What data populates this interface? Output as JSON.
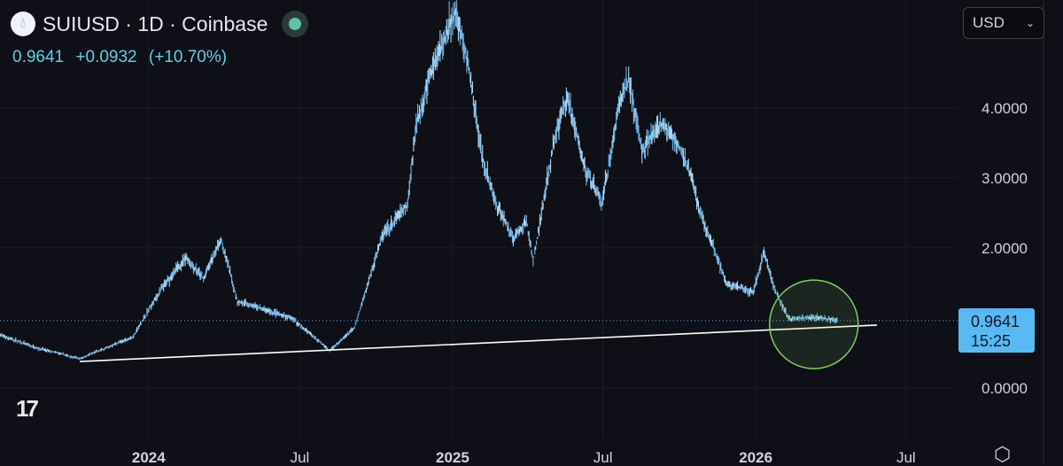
{
  "header": {
    "symbol": "SUIUSD",
    "interval": "1D",
    "exchange": "Coinbase",
    "title": "SUIUSD · 1D · Coinbase",
    "last": "0.9641",
    "change": "+0.0932",
    "change_pct": "(+10.70%)",
    "currency": "USD",
    "icon": "sui-droplet-icon",
    "status_icon": "market-open-dot"
  },
  "price_tag": {
    "price": "0.9641",
    "countdown": "15:25"
  },
  "colors": {
    "background": "#0f0f17",
    "candles": "#8ec9f0",
    "accent": "#5ab8f2",
    "trendline": "#ffffff",
    "circle": "#7fcf6a"
  },
  "chart_data": {
    "type": "line",
    "style": "candlestick",
    "series": [
      {
        "points": [
          [
            "2023-07-06",
            0.76
          ],
          [
            "2023-08-17",
            0.58
          ],
          [
            "2023-10-10",
            0.42
          ],
          [
            "2023-12-13",
            0.73
          ],
          [
            "2024-01-14",
            1.37
          ],
          [
            "2024-02-15",
            1.87
          ],
          [
            "2024-03-07",
            1.56
          ],
          [
            "2024-03-28",
            2.13
          ],
          [
            "2024-04-17",
            1.24
          ],
          [
            "2024-05-21",
            1.11
          ],
          [
            "2024-06-22",
            0.99
          ],
          [
            "2024-08-06",
            0.54
          ],
          [
            "2024-09-05",
            0.86
          ],
          [
            "2024-10-07",
            2.13
          ],
          [
            "2024-11-08",
            2.63
          ],
          [
            "2024-11-18",
            3.77
          ],
          [
            "2024-12-10",
            4.66
          ],
          [
            "2025-01-05",
            5.35
          ],
          [
            "2025-01-21",
            4.53
          ],
          [
            "2025-02-06",
            3.27
          ],
          [
            "2025-02-22",
            2.63
          ],
          [
            "2025-03-16",
            2.13
          ],
          [
            "2025-03-31",
            2.38
          ],
          [
            "2025-04-08",
            1.81
          ],
          [
            "2025-05-03",
            3.52
          ],
          [
            "2025-05-19",
            4.15
          ],
          [
            "2025-06-09",
            3.14
          ],
          [
            "2025-06-30",
            2.63
          ],
          [
            "2025-07-22",
            4.15
          ],
          [
            "2025-08-01",
            4.4
          ],
          [
            "2025-08-17",
            3.39
          ],
          [
            "2025-09-08",
            3.77
          ],
          [
            "2025-09-29",
            3.52
          ],
          [
            "2025-10-15",
            3.01
          ],
          [
            "2025-10-26",
            2.51
          ],
          [
            "2025-11-11",
            2.0
          ],
          [
            "2025-11-27",
            1.49
          ],
          [
            "2025-12-29",
            1.37
          ],
          [
            "2026-01-11",
            1.94
          ],
          [
            "2026-01-25",
            1.37
          ],
          [
            "2026-02-10",
            0.99
          ],
          [
            "2026-03-14",
            1.01
          ],
          [
            "2026-04-09",
            0.96
          ]
        ]
      }
    ],
    "x_ticks": [
      {
        "date": "2024-01-01",
        "label": "2024",
        "bold": true
      },
      {
        "date": "2024-07-01",
        "label": "Jul"
      },
      {
        "date": "2025-01-01",
        "label": "2025",
        "bold": true
      },
      {
        "date": "2025-07-01",
        "label": "Jul"
      },
      {
        "date": "2026-01-01",
        "label": "2026",
        "bold": true
      },
      {
        "date": "2026-07-01",
        "label": "Jul"
      }
    ],
    "y_ticks": [
      {
        "value": 0,
        "label": "0.0000"
      },
      {
        "value": 2,
        "label": "2.0000"
      },
      {
        "value": 3,
        "label": "3.0000"
      },
      {
        "value": 4,
        "label": "4.0000"
      }
    ],
    "xlim": [
      "2023-07-06",
      "2026-08-31"
    ],
    "ylim": [
      -0.72,
      5.54
    ],
    "grid": true,
    "last_price": 0.9641,
    "annotations": [
      {
        "type": "trendline",
        "from": [
          "2023-10-10",
          0.38
        ],
        "to": [
          "2026-05-27",
          0.9
        ],
        "color": "#ffffff"
      },
      {
        "type": "circle",
        "center": [
          "2026-03-12",
          0.91
        ],
        "color": "#7fcf6a"
      }
    ]
  }
}
